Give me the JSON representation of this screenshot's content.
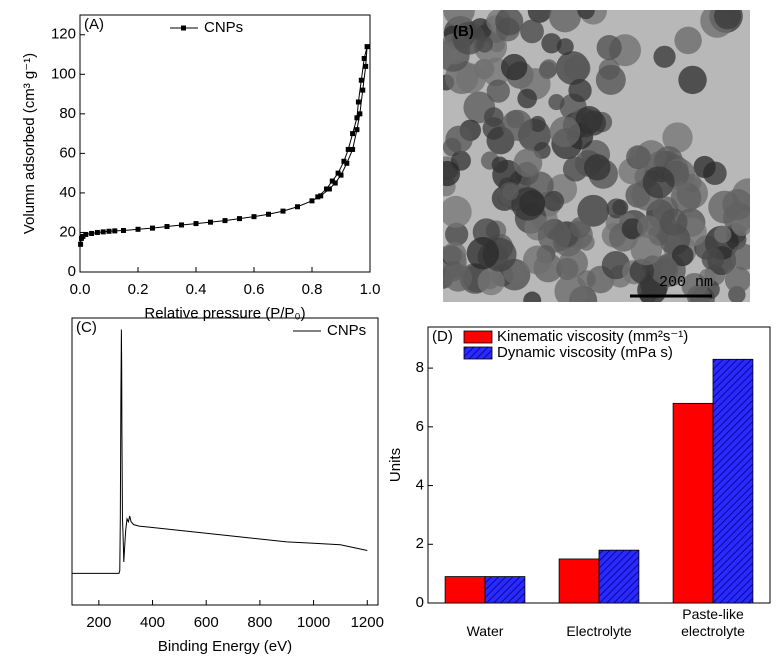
{
  "chart_data": [
    {
      "type": "line",
      "panel_label": "(A)",
      "marker": "square",
      "legend": "upper center",
      "x_label": "Relative pressure (P/P₀)",
      "y_label": "Volumn adsorbed (cm³ g⁻¹)",
      "xlim": [
        0,
        1.0
      ],
      "xticks": [
        {
          "value": 0,
          "label": "0.0"
        },
        0.2,
        0.4,
        0.6,
        0.8,
        {
          "value": 1.0,
          "label": "1.0"
        }
      ],
      "ylim": [
        0,
        130
      ],
      "yticks": [
        0,
        20,
        40,
        60,
        80,
        100,
        120
      ],
      "series": [
        {
          "name": "CNPs",
          "color": "#000000",
          "x": [
            0.002,
            0.005,
            0.01,
            0.02,
            0.04,
            0.06,
            0.08,
            0.1,
            0.12,
            0.15,
            0.2,
            0.25,
            0.3,
            0.35,
            0.4,
            0.45,
            0.5,
            0.55,
            0.6,
            0.65,
            0.7,
            0.75,
            0.8,
            0.83,
            0.86,
            0.88,
            0.9,
            0.92,
            0.94,
            0.955,
            0.965,
            0.975,
            0.985,
            0.99,
            0.98,
            0.97,
            0.96,
            0.955,
            0.94,
            0.925,
            0.91,
            0.89,
            0.87,
            0.85,
            0.82
          ],
          "values": [
            14,
            17,
            18,
            19,
            19.5,
            20,
            20.3,
            20.6,
            20.8,
            21,
            21.6,
            22.2,
            23,
            23.8,
            24.5,
            25.2,
            26,
            27,
            28,
            29.2,
            30.8,
            33,
            36,
            38.5,
            42,
            45,
            49,
            55,
            62,
            72,
            80,
            92,
            104,
            114,
            108,
            97,
            86,
            78,
            70,
            62,
            56,
            50,
            46,
            42,
            38
          ]
        }
      ]
    },
    {
      "type": "image",
      "panel_label": "(B)",
      "scale_bar": "200 nm"
    },
    {
      "type": "line",
      "panel_label": "(C)",
      "legend": "upper right",
      "x_label": "Binding Energy (eV)",
      "xlim": [
        100,
        1240
      ],
      "xticks": [
        200,
        400,
        600,
        800,
        1000,
        1200
      ],
      "ylim": [
        0,
        100
      ],
      "series": [
        {
          "name": "CNPs",
          "color": "#000000",
          "x": [
            100,
            150,
            200,
            250,
            275,
            278,
            280,
            282,
            284,
            285,
            286,
            288,
            290,
            293,
            296,
            300,
            305,
            310,
            315,
            320,
            330,
            350,
            400,
            500,
            600,
            700,
            800,
            900,
            1000,
            1100,
            1200
          ],
          "values": [
            11,
            11,
            11,
            11,
            11,
            12,
            30,
            70,
            96,
            85,
            60,
            30,
            25,
            15,
            20,
            26,
            30,
            29,
            31,
            29,
            28,
            27.5,
            27,
            26,
            25,
            24,
            23,
            22,
            21.5,
            21,
            19
          ]
        }
      ]
    },
    {
      "type": "bar",
      "panel_label": "(D)",
      "legend": "upper left",
      "y_label": "Units",
      "categories": [
        "Water",
        "Electrolyte",
        "Paste-like electrolyte"
      ],
      "ylim": [
        0,
        9.4
      ],
      "yticks": [
        0,
        2,
        4,
        6,
        8
      ],
      "series": [
        {
          "name": "Kinematic viscosity (mm²s⁻¹)",
          "color": "#ff0000",
          "hatch": false,
          "values": [
            0.9,
            1.5,
            6.8
          ]
        },
        {
          "name": "Dynamic viscosity (mPa s)",
          "color": "#2a2aff",
          "hatch": true,
          "values": [
            0.9,
            1.8,
            8.3
          ]
        }
      ]
    }
  ]
}
